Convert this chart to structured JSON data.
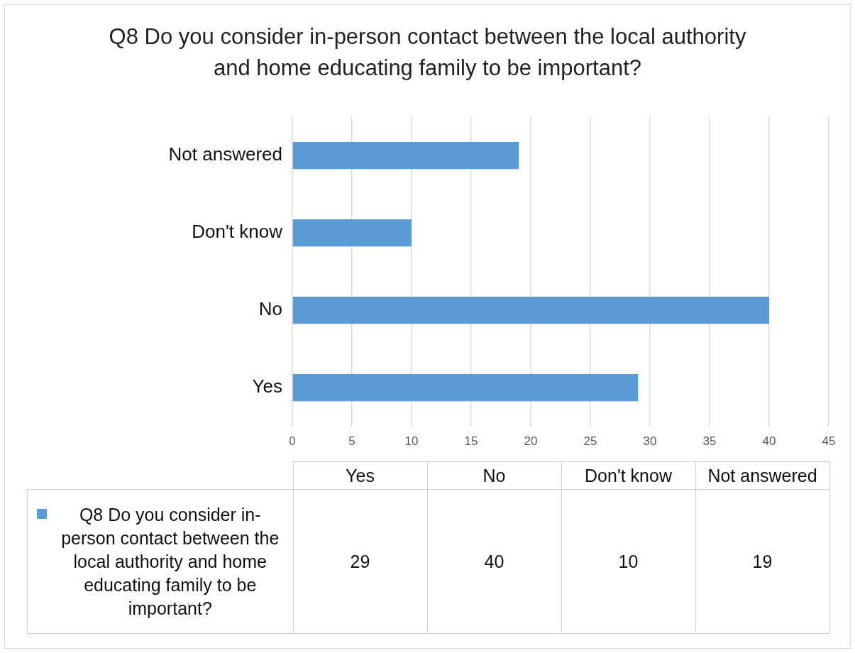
{
  "chart_data": [
    {
      "type": "bar",
      "orientation": "horizontal",
      "title": "Q8 Do you consider in-person contact between the local authority and home educating family to be important?",
      "categories": [
        "Not answered",
        "Don't know",
        "No",
        "Yes"
      ],
      "series": [
        {
          "color": "#5b9bd5",
          "values": [
            19,
            10,
            40,
            29
          ]
        }
      ],
      "xlim": [
        0,
        45
      ],
      "xticks": [
        0,
        5,
        10,
        15,
        20,
        25,
        30,
        35,
        40,
        45
      ],
      "grid": "x"
    },
    {
      "type": "other",
      "categories": [
        "Yes",
        "No",
        "Don't know",
        "Not answered"
      ],
      "series": [
        {
          "name": "Q8 Do you consider in-person contact between the local authority and home educating family to be important?",
          "color": "#5b9bd5",
          "values": [
            29,
            40,
            10,
            19
          ]
        }
      ],
      "legend": "left",
      "data_labels": true
    }
  ]
}
